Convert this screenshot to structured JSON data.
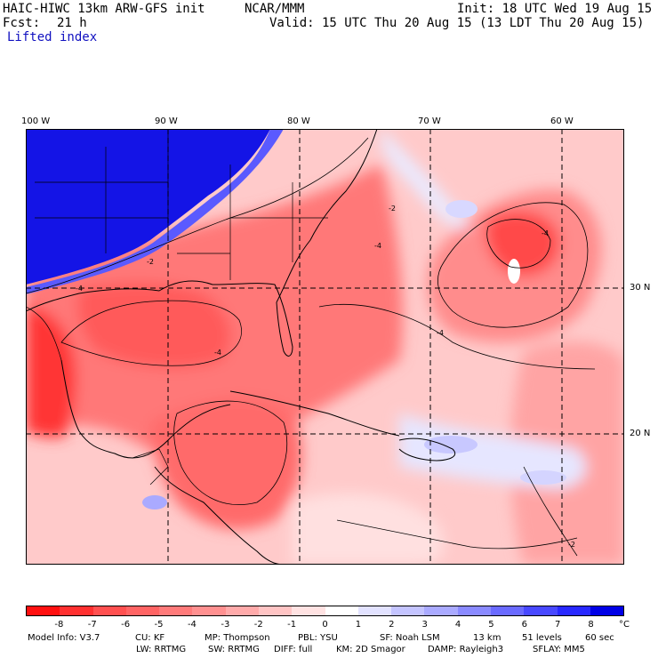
{
  "header": {
    "model": "HAIC-HIWC 13km ARW-GFS init",
    "org": "NCAR/MMM",
    "init": "Init: 18 UTC Wed 19 Aug 15",
    "fcst_label": "Fcst:",
    "fcst_hours": "21 h",
    "valid": "Valid: 15 UTC Thu 20 Aug 15 (13 LDT Thu 20 Aug 15)",
    "field": "Lifted index"
  },
  "map": {
    "lon_labels": [
      "100 W",
      "90 W",
      "80 W",
      "70 W",
      "60 W"
    ],
    "lat_labels": [
      "30 N",
      "20 N"
    ],
    "contour_labels": [
      "-2",
      "-4",
      "-4",
      "-4",
      "-4",
      "-2",
      "-4",
      "-2"
    ]
  },
  "colorbar": {
    "ticks": [
      "-8",
      "-7",
      "-6",
      "-5",
      "-4",
      "-3",
      "-2",
      "-1",
      "0",
      "1",
      "2",
      "3",
      "4",
      "5",
      "6",
      "7",
      "8"
    ],
    "unit": "°C",
    "colors": [
      "#ff1010",
      "#ff3030",
      "#ff5050",
      "#ff6464",
      "#ff7a7a",
      "#ff9090",
      "#ffaaaa",
      "#ffc4c4",
      "#ffe2e2",
      "#ffffff",
      "#e2e2ff",
      "#c4c4ff",
      "#aaaaff",
      "#8a8aff",
      "#6a6aff",
      "#4848ff",
      "#2828ff",
      "#0000e6"
    ]
  },
  "footer": {
    "line1": [
      "Model Info: V3.7",
      "CU: KF",
      "MP: Thompson",
      "PBL: YSU",
      "SF: Noah LSM",
      "13 km",
      "51 levels",
      "60 sec"
    ],
    "line2": [
      "LW: RRTMG",
      "SW: RRTMG",
      "DIFF: full",
      "KM: 2D Smagor",
      "DAMP: Rayleigh3",
      "SFLAY: MM5"
    ]
  }
}
